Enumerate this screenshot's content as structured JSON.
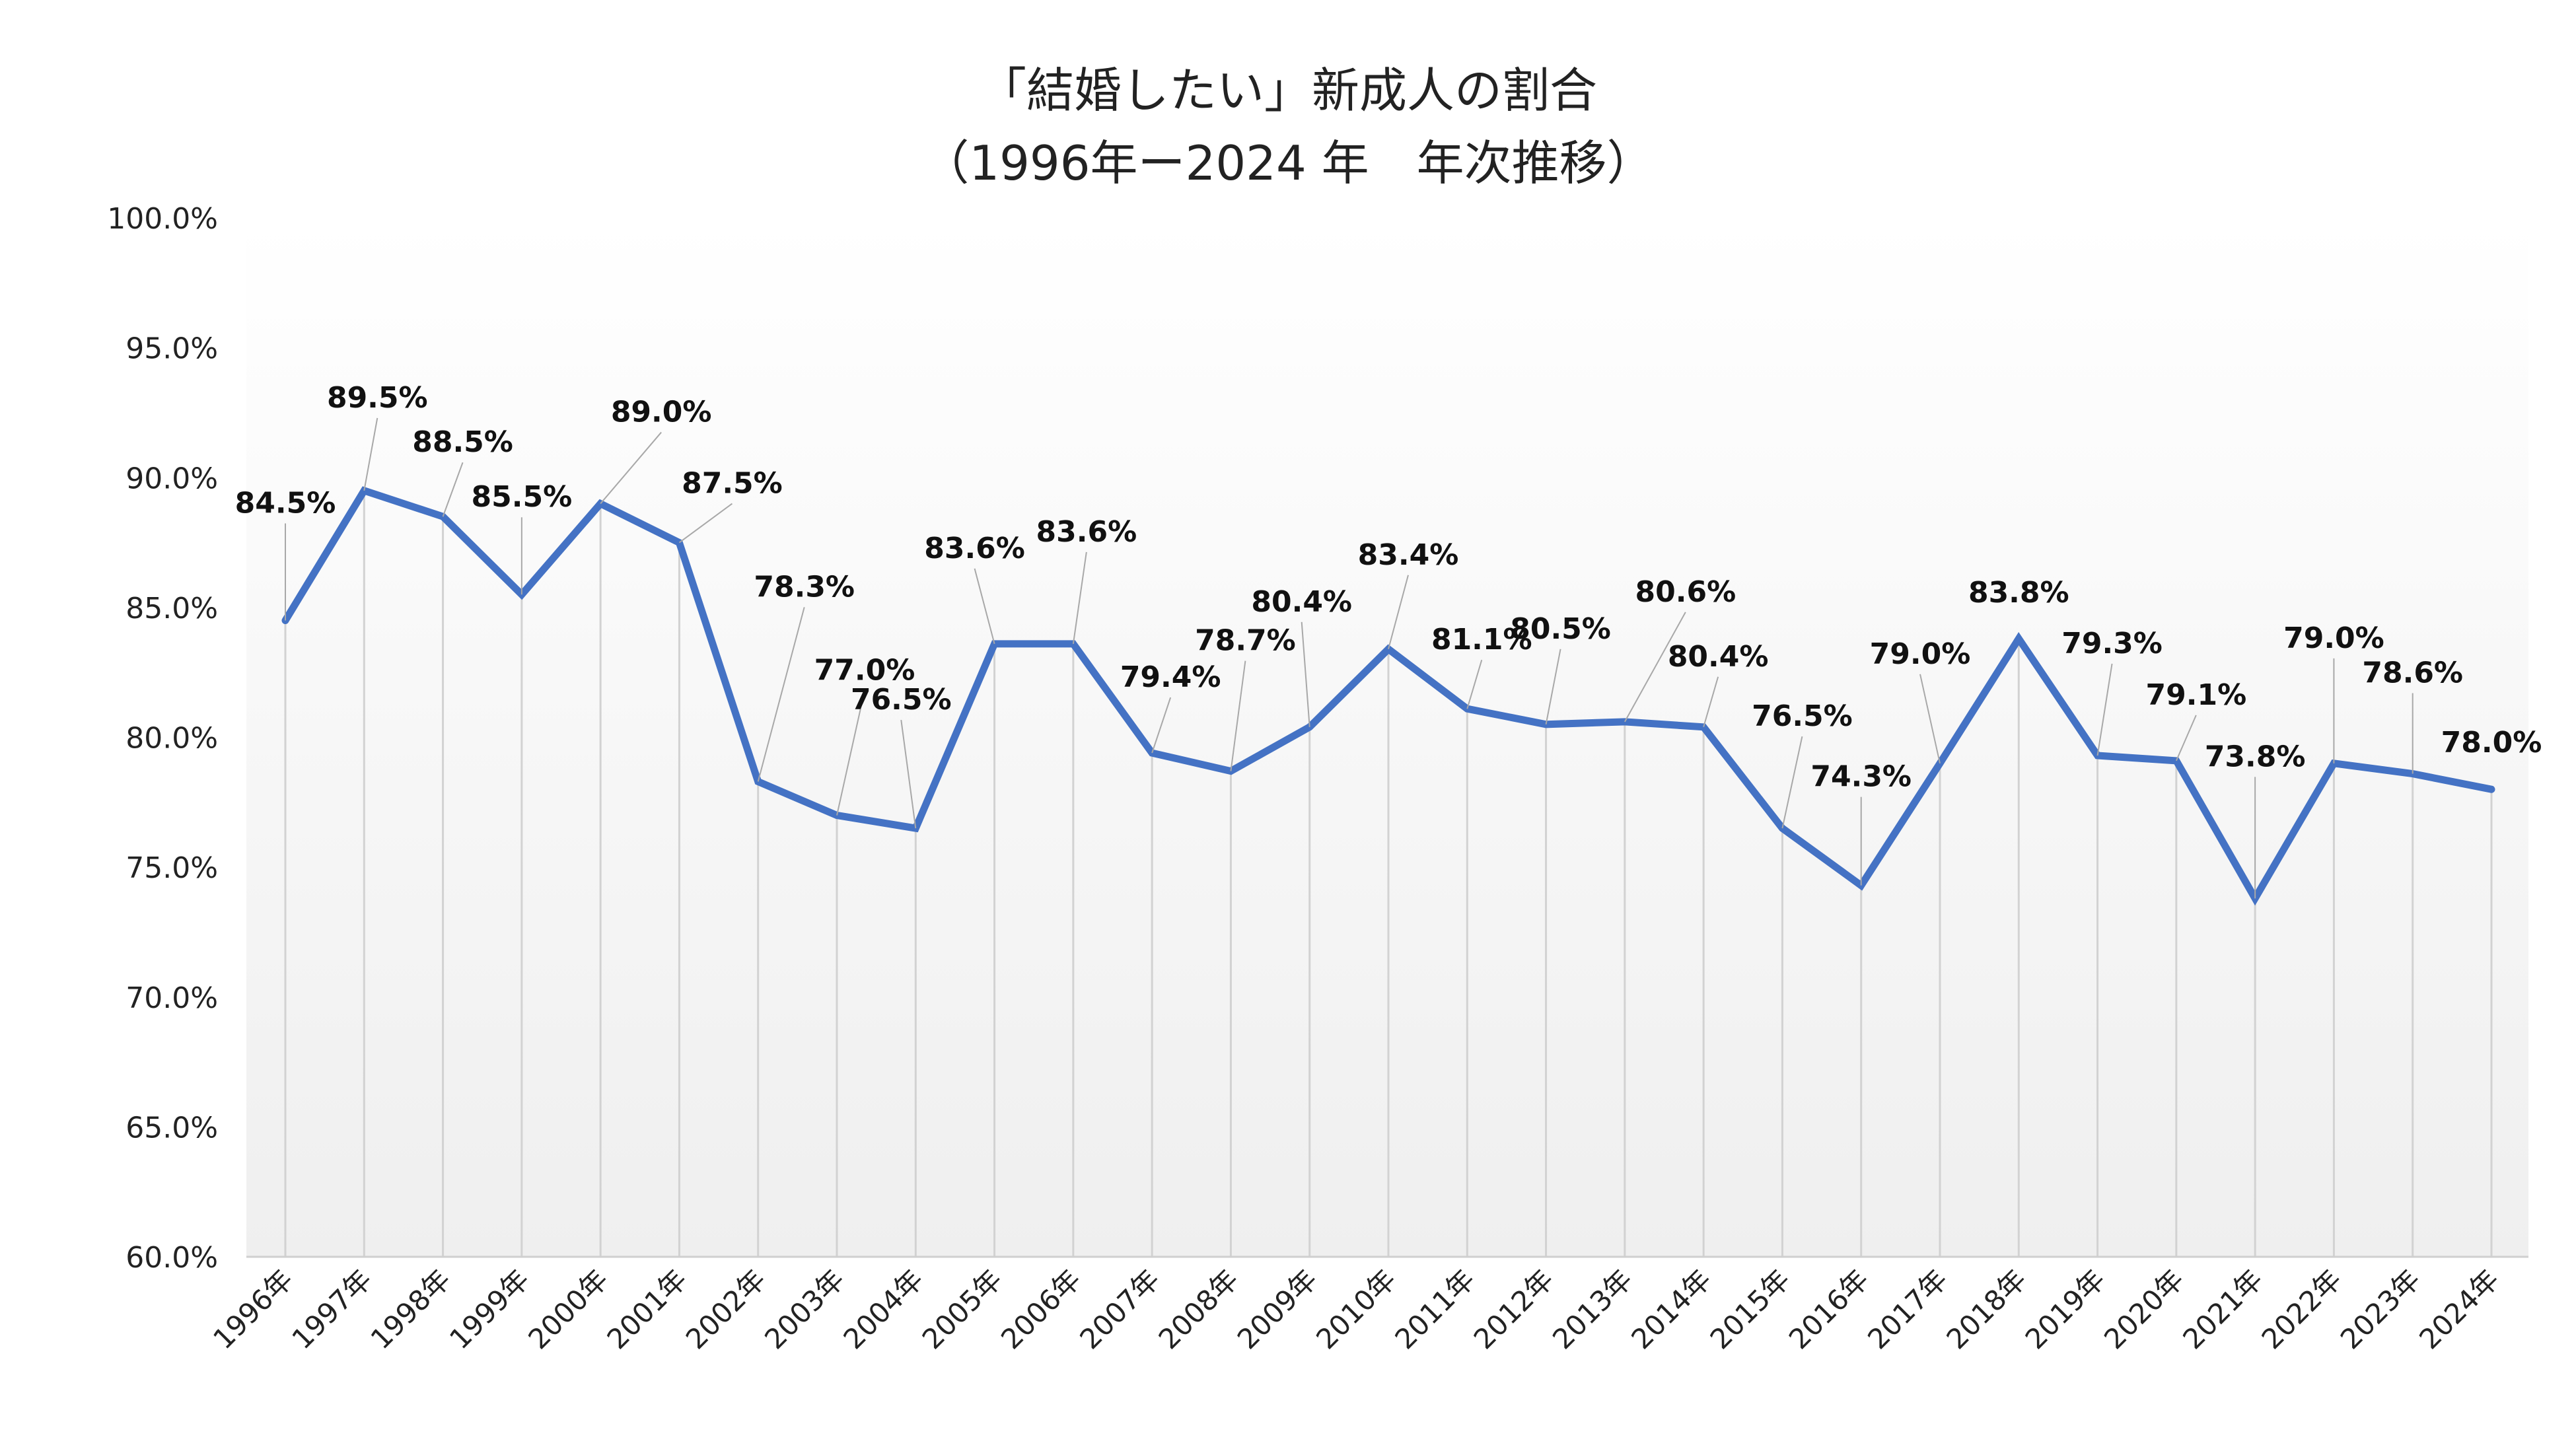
{
  "chart_data": {
    "type": "line",
    "title": "「結婚したい」新成人の割合",
    "subtitle": "（1996年ー2024 年　年次推移）",
    "xlabel": "",
    "ylabel": "",
    "ylim": [
      60,
      100
    ],
    "yticks": [
      "60.0%",
      "65.0%",
      "70.0%",
      "75.0%",
      "80.0%",
      "85.0%",
      "90.0%",
      "95.0%",
      "100.0%"
    ],
    "grid": "vertical drop lines",
    "legend": "none",
    "categories": [
      "1996年",
      "1997年",
      "1998年",
      "1999年",
      "2000年",
      "2001年",
      "2002年",
      "2003年",
      "2004年",
      "2005年",
      "2006年",
      "2007年",
      "2008年",
      "2009年",
      "2010年",
      "2011年",
      "2012年",
      "2013年",
      "2014年",
      "2015年",
      "2016年",
      "2017年",
      "2018年",
      "2019年",
      "2020年",
      "2021年",
      "2022年",
      "2023年",
      "2024年"
    ],
    "series": [
      {
        "name": "「結婚したい」新成人の割合",
        "color": "#4472C4",
        "values": [
          84.5,
          89.5,
          88.5,
          85.5,
          89.0,
          87.5,
          78.3,
          77.0,
          76.5,
          83.6,
          83.6,
          79.4,
          78.7,
          80.4,
          83.4,
          81.1,
          80.5,
          80.6,
          80.4,
          76.5,
          74.3,
          79.0,
          83.8,
          79.3,
          79.1,
          73.8,
          79.0,
          78.6,
          78.0
        ],
        "labels": [
          "84.5%",
          "89.5%",
          "88.5%",
          "85.5%",
          "89.0%",
          "87.5%",
          "78.3%",
          "77.0%",
          "76.5%",
          "83.6%",
          "83.6%",
          "79.4%",
          "78.7%",
          "80.4%",
          "83.4%",
          "81.1%",
          "80.5%",
          "80.6%",
          "80.4%",
          "76.5%",
          "74.3%",
          "79.0%",
          "83.8%",
          "79.3%",
          "79.1%",
          "73.8%",
          "79.0%",
          "78.6%",
          "78.0%"
        ]
      }
    ]
  }
}
